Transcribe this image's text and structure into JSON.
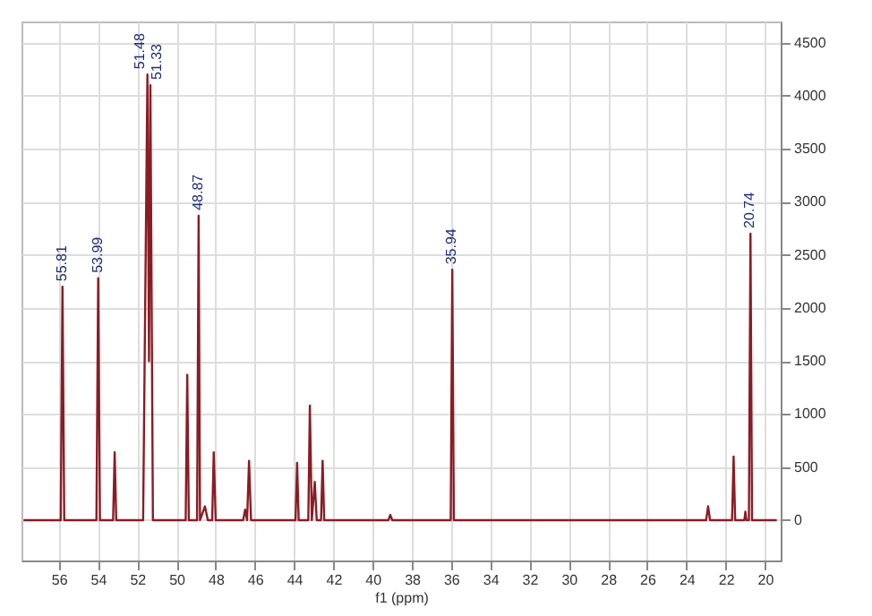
{
  "chart_data": {
    "type": "line",
    "xlabel": "f1 (ppm)",
    "xlim": [
      57.9,
      19.2
    ],
    "xticks": [
      56,
      54,
      52,
      50,
      48,
      46,
      44,
      42,
      40,
      38,
      36,
      34,
      32,
      30,
      28,
      26,
      24,
      22,
      20
    ],
    "ylim": [
      -380,
      4700
    ],
    "yticks": [
      0,
      500,
      1000,
      1500,
      2000,
      2500,
      3000,
      3500,
      4000,
      4500
    ],
    "grid": true,
    "marker": "none",
    "line_style": "solid",
    "series": [
      {
        "color": "#8b1c24",
        "x": [
          57.8,
          55.9,
          55.81,
          55.72,
          54.08,
          53.99,
          53.9,
          53.23,
          53.15,
          53.07,
          51.7,
          51.48,
          51.4,
          51.33,
          51.2,
          49.53,
          49.45,
          49.37,
          48.95,
          48.87,
          48.8,
          48.55,
          48.4,
          48.18,
          48.1,
          48.0,
          46.6,
          46.5,
          46.4,
          46.3,
          46.2,
          43.93,
          43.85,
          43.77,
          43.28,
          43.2,
          43.1,
          42.95,
          42.85,
          42.63,
          42.55,
          42.47,
          39.2,
          39.1,
          39.0,
          36.02,
          35.94,
          35.86,
          23.0,
          22.9,
          22.8,
          21.68,
          21.6,
          21.52,
          21.05,
          21.0,
          20.95,
          20.82,
          20.74,
          20.66,
          19.4
        ],
        "values": [
          0,
          0,
          2200,
          0,
          0,
          2280,
          0,
          0,
          640,
          0,
          0,
          4200,
          1500,
          4100,
          0,
          0,
          1370,
          0,
          0,
          2870,
          0,
          130,
          0,
          0,
          640,
          0,
          0,
          100,
          0,
          560,
          0,
          0,
          540,
          0,
          0,
          1080,
          0,
          360,
          0,
          0,
          560,
          0,
          0,
          50,
          0,
          0,
          2360,
          0,
          0,
          130,
          0,
          0,
          600,
          0,
          0,
          80,
          0,
          0,
          2700,
          0,
          0
        ]
      }
    ],
    "annotations": [
      {
        "text": "55.81",
        "x": 55.81,
        "y": 2200
      },
      {
        "text": "53.99",
        "x": 53.99,
        "y": 2280
      },
      {
        "text": "51.48",
        "x": 51.48,
        "y": 4200
      },
      {
        "text": "51.33",
        "x": 51.33,
        "y": 4100
      },
      {
        "text": "48.87",
        "x": 48.87,
        "y": 2870
      },
      {
        "text": "35.94",
        "x": 35.94,
        "y": 2360
      },
      {
        "text": "20.74",
        "x": 20.74,
        "y": 2700
      }
    ]
  }
}
